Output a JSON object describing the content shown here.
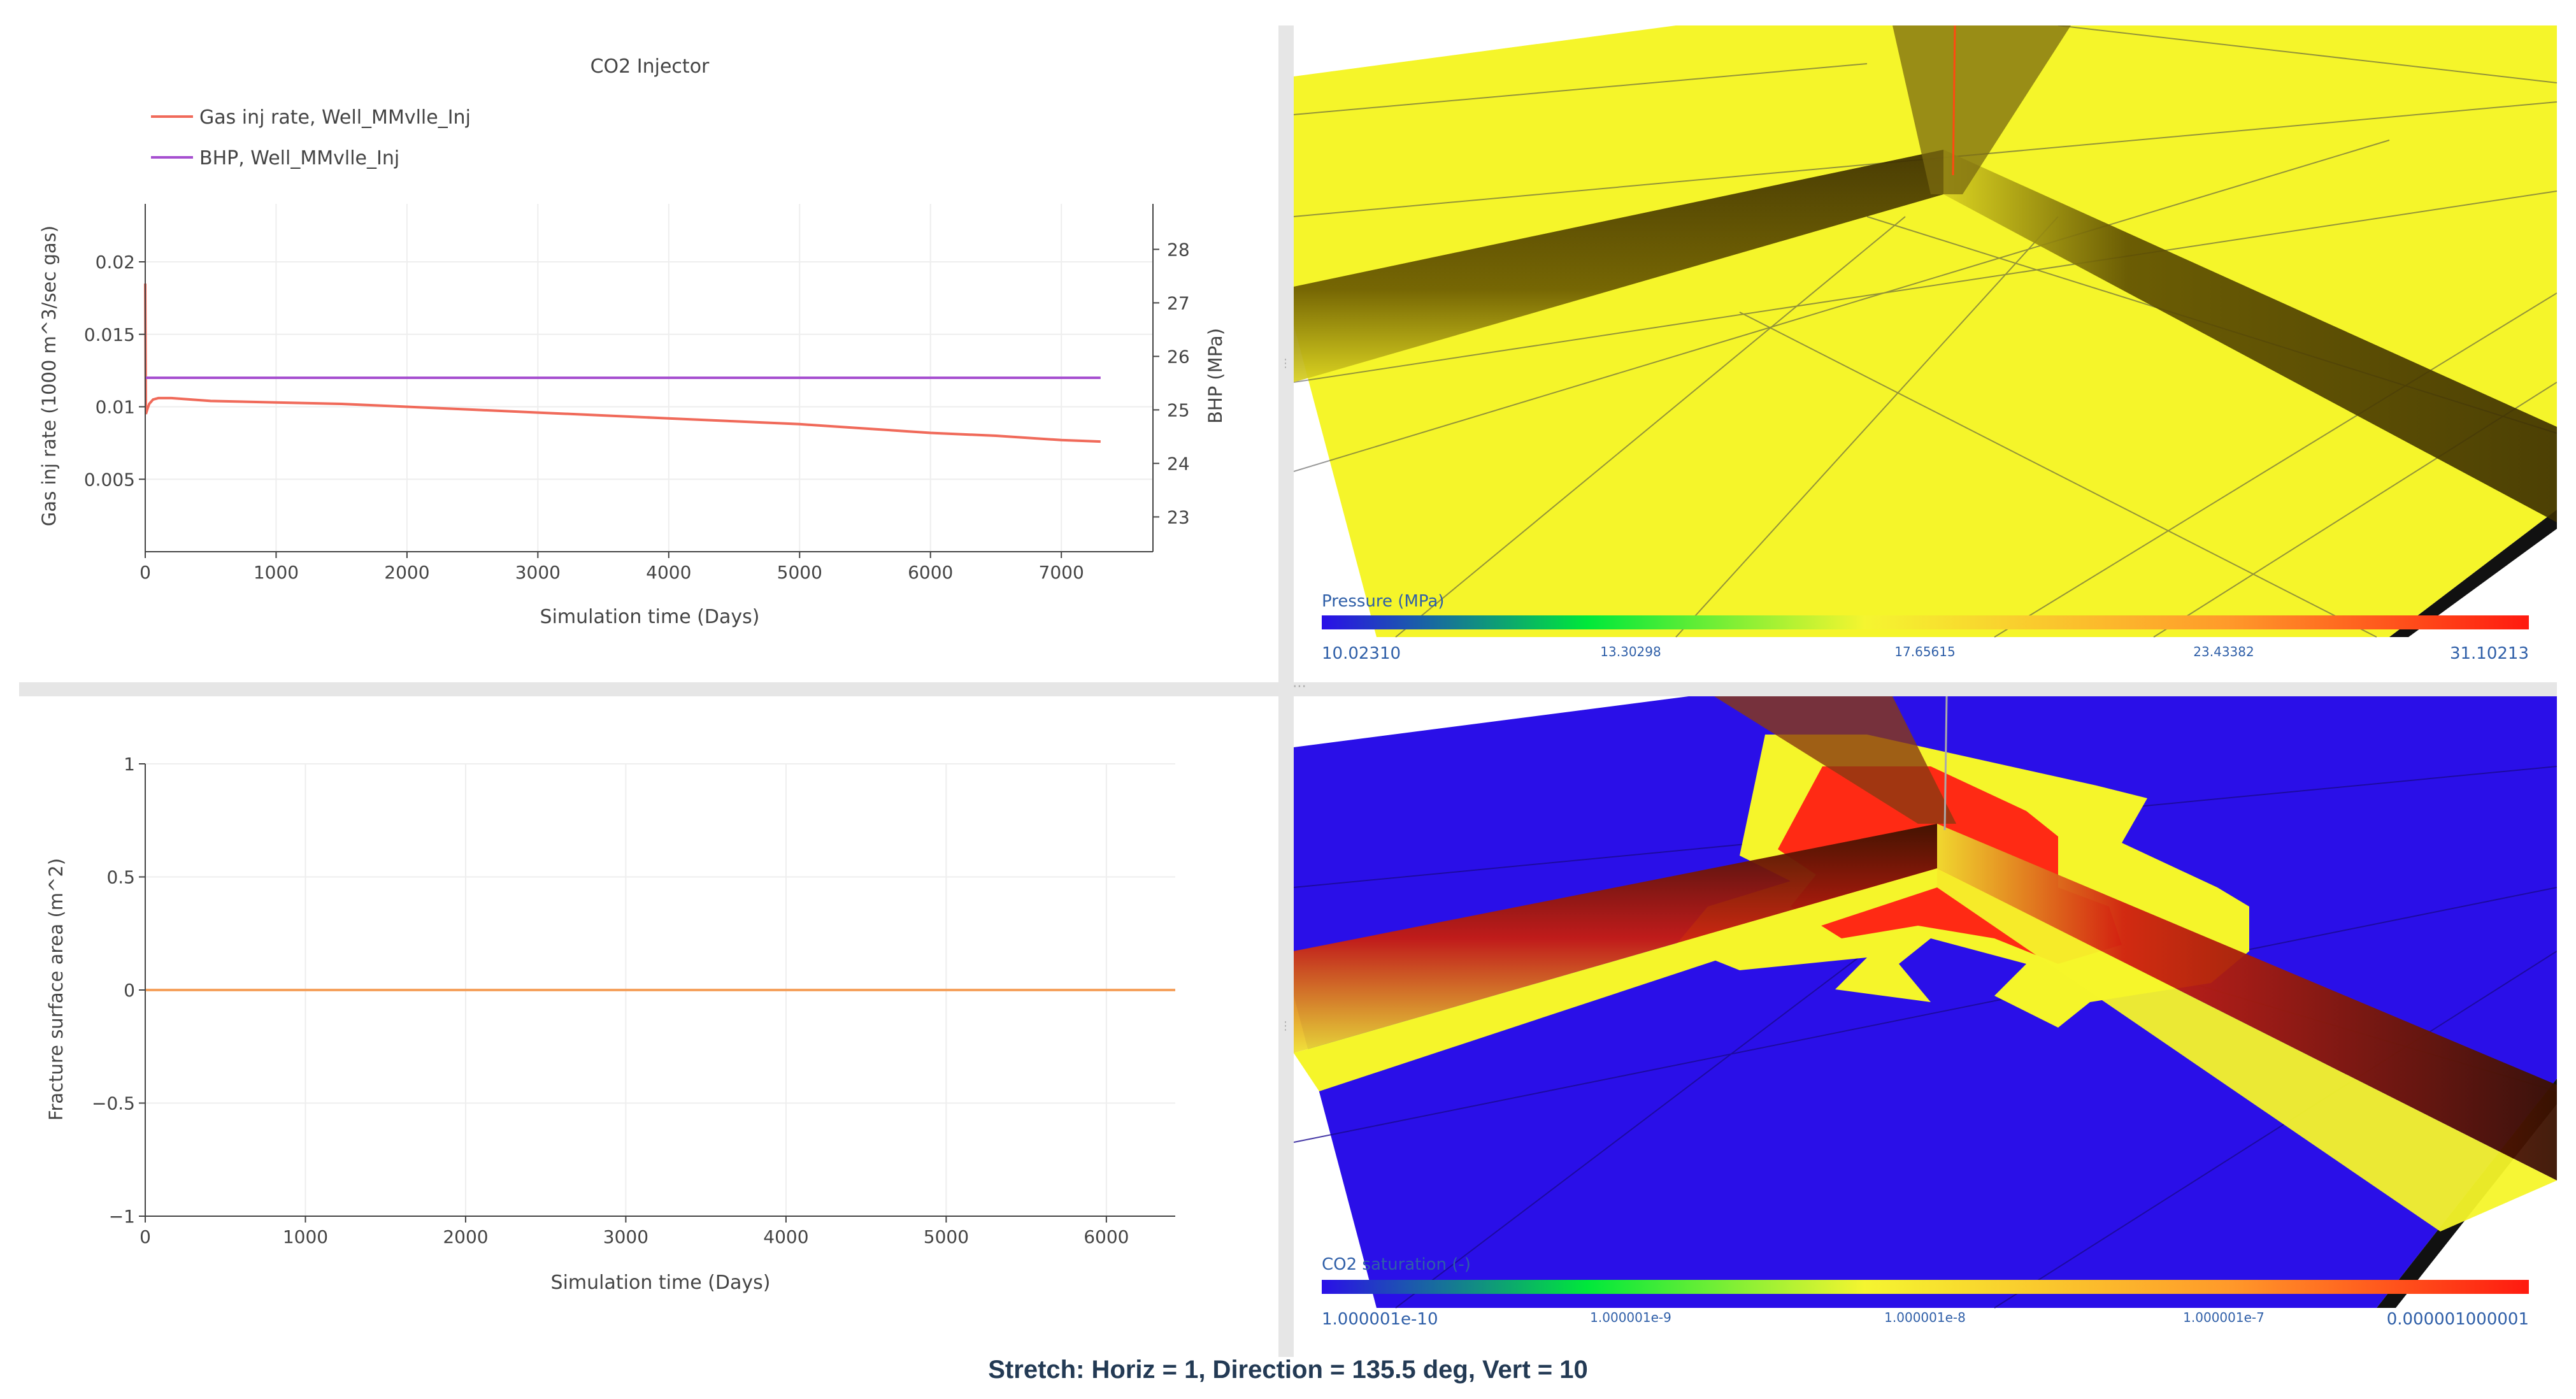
{
  "top_chart": {
    "title": "CO2 Injector",
    "legend": [
      {
        "label": "Gas inj rate, Well_MMvlle_Inj",
        "color": "#f06a5a"
      },
      {
        "label": "BHP, Well_MMvlle_Inj",
        "color": "#a64fd0"
      }
    ],
    "xlabel": "Simulation time (Days)",
    "ylabel": "Gas inj rate (1000 m^3/sec gas)",
    "y2label": "BHP (MPa)",
    "xticks": [
      "0",
      "1000",
      "2000",
      "3000",
      "4000",
      "5000",
      "6000",
      "7000"
    ],
    "yticks": [
      "0.005",
      "0.01",
      "0.015",
      "0.02"
    ],
    "y2ticks": [
      "23",
      "24",
      "25",
      "26",
      "27",
      "28"
    ]
  },
  "bottom_chart": {
    "xlabel": "Simulation time (Days)",
    "ylabel": "Fracture surface area (m^2)",
    "xticks": [
      "0",
      "1000",
      "2000",
      "3000",
      "4000",
      "5000",
      "6000"
    ],
    "yticks": [
      "1",
      "0.5",
      "0",
      "−0.5",
      "−1"
    ]
  },
  "chart_data": [
    {
      "type": "line",
      "title": "CO2 Injector",
      "xlabel": "Simulation time (Days)",
      "ylabel": "Gas inj rate (1000 m^3/sec gas)",
      "y2label": "BHP (MPa)",
      "xlim": [
        0,
        7700
      ],
      "ylim": [
        0,
        0.024
      ],
      "y2lim": [
        22.35,
        28.85
      ],
      "grid": true,
      "legend_position": "top-left",
      "series": [
        {
          "name": "Gas inj rate, Well_MMvlle_Inj",
          "axis": "y",
          "color": "#f06a5a",
          "x": [
            0,
            5,
            15,
            30,
            60,
            100,
            200,
            500,
            1000,
            1500,
            2000,
            2500,
            3000,
            3500,
            4000,
            4500,
            5000,
            5500,
            6000,
            6500,
            7000,
            7300
          ],
          "y": [
            0.0185,
            0.0095,
            0.0098,
            0.0102,
            0.0105,
            0.0106,
            0.0106,
            0.0104,
            0.0103,
            0.0102,
            0.01,
            0.0098,
            0.0096,
            0.0094,
            0.0092,
            0.009,
            0.0088,
            0.0085,
            0.0082,
            0.008,
            0.0077,
            0.0076
          ]
        },
        {
          "name": "BHP, Well_MMvlle_Inj",
          "axis": "y2",
          "color": "#a64fd0",
          "x": [
            0,
            7300
          ],
          "y": [
            25.6,
            25.6
          ]
        }
      ]
    },
    {
      "type": "line",
      "xlabel": "Simulation time (Days)",
      "ylabel": "Fracture surface area (m^2)",
      "xlim": [
        0,
        6430
      ],
      "ylim": [
        -1,
        1
      ],
      "grid": true,
      "series": [
        {
          "color": "#f5a15d",
          "x": [
            0,
            6430
          ],
          "y": [
            0,
            0
          ]
        }
      ]
    }
  ],
  "views3d": {
    "top": {
      "colorbar_title": "Pressure (MPa)",
      "ticks": [
        "10.02310",
        "13.30298",
        "17.65615",
        "23.43382",
        "31.10213"
      ]
    },
    "bottom": {
      "colorbar_title": "CO2 saturation (-)",
      "ticks": [
        "1.000001e-10",
        "1.000001e-9",
        "1.000001e-8",
        "1.000001e-7",
        "0.000001000001"
      ]
    }
  },
  "footer": {
    "text": "Stretch: Horiz = 1, Direction = 135.5 deg, Vert = 10"
  },
  "colors": {
    "axis": "#444444",
    "grid": "#eeeeee",
    "splitter": "#e6e6e6",
    "colorbar_label": "#2f5fa8",
    "footer": "#233a54",
    "reservoir_yellow": "#f5f52a",
    "reservoir_blue": "#2a0fe8",
    "plume_red": "#ff2a14"
  }
}
